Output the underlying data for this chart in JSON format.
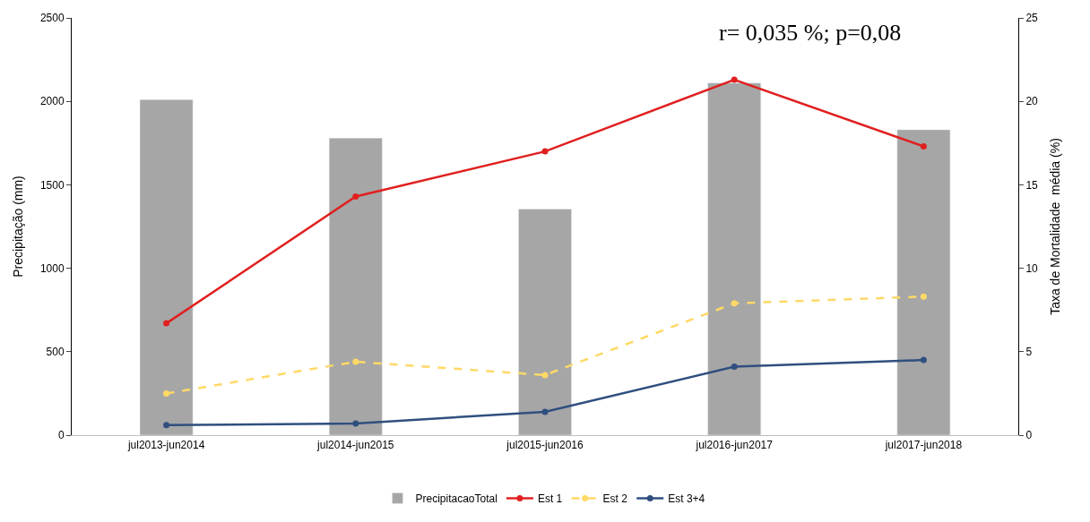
{
  "chart_data": {
    "type": "bar",
    "ylabel": "Precipitação (mm)",
    "y2label": "Taxa de Mortalidade  média (%)",
    "categories": [
      "jul2013-jun2014",
      "jul2014-jun2015",
      "jul2015-jun2016",
      "jul2016-jun2017",
      "jul2017-jun2018"
    ],
    "series": [
      {
        "name": "PrecipitacaoTotal",
        "color": "#a6a6a6",
        "values": [
          2010,
          1780,
          1355,
          2110,
          1830
        ]
      },
      {
        "name": "Est 1",
        "type": "line",
        "axis": "y2",
        "color": "#e02020",
        "marker": "circle",
        "line_style": "solid",
        "values": [
          6.7,
          14.3,
          17.0,
          21.3,
          17.3
        ]
      },
      {
        "name": "Est 2",
        "type": "line",
        "axis": "y2",
        "color": "#ffd966",
        "marker": "circle",
        "line_style": "dashed",
        "values": [
          2.5,
          4.4,
          3.6,
          7.9,
          8.3
        ]
      },
      {
        "name": "Est 3+4",
        "type": "line",
        "axis": "y2",
        "color": "#2f4f7f",
        "marker": "circle",
        "line_style": "solid",
        "values": [
          0.6,
          0.7,
          1.4,
          4.1,
          4.5
        ]
      }
    ],
    "ylim": [
      0,
      2500
    ],
    "yticks": [
      0,
      500,
      1000,
      1500,
      2000,
      2500
    ],
    "y2lim": [
      0,
      25
    ],
    "y2ticks": [
      0,
      5,
      10,
      15,
      20,
      25
    ],
    "annotations": [
      "r= 0,035 %; p=0,08"
    ],
    "legend": "bottom"
  }
}
